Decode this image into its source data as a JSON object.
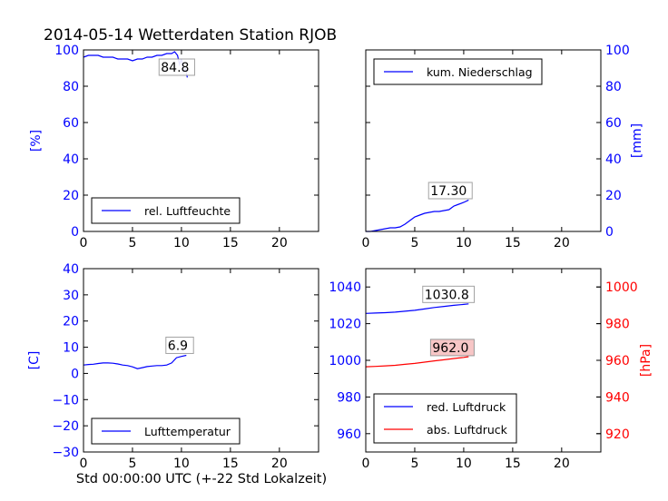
{
  "title": "2014-05-14 Wetterdaten Station RJOB",
  "xlabel": "Std 00:00:00 UTC (+-22 Std Lokalzeit)",
  "chart_data": [
    {
      "type": "line",
      "panel": "top-left",
      "ylabel": "[%]",
      "xlim": [
        0,
        24
      ],
      "ylim": [
        0,
        100
      ],
      "xticks": [
        "0",
        "5",
        "10",
        "15",
        "20"
      ],
      "yticks": [
        "0",
        "20",
        "40",
        "60",
        "80",
        "100"
      ],
      "legend": "bottom-center",
      "annotation": "84.8",
      "series": [
        {
          "name": "rel. Luftfeuchte",
          "color": "#0000ff",
          "x": [
            0,
            0.5,
            1,
            1.5,
            2,
            2.5,
            3,
            3.5,
            4,
            4.5,
            5,
            5.5,
            6,
            6.5,
            7,
            7.5,
            8,
            8.5,
            9,
            9.3,
            9.6,
            9.8,
            10.0,
            10.2,
            10.4,
            10.6
          ],
          "y": [
            96,
            97,
            97,
            97,
            96,
            96,
            96,
            95,
            95,
            95,
            94,
            95,
            95,
            96,
            96,
            97,
            97,
            98,
            98,
            99,
            97,
            92,
            95,
            88,
            90,
            84.8
          ]
        }
      ]
    },
    {
      "type": "line",
      "panel": "top-right",
      "ylabel": "[mm]",
      "xlim": [
        0,
        24
      ],
      "ylim": [
        0,
        100
      ],
      "xticks": [
        "0",
        "5",
        "10",
        "15",
        "20"
      ],
      "yticks": [
        "0",
        "20",
        "40",
        "60",
        "80",
        "100"
      ],
      "legend": "top-left",
      "annotation": "17.30",
      "series": [
        {
          "name": "kum. Niederschlag",
          "color": "#0000ff",
          "x": [
            0,
            0.5,
            1,
            1.5,
            2,
            2.5,
            3,
            3.5,
            4,
            4.5,
            5,
            5.5,
            6,
            6.5,
            7,
            7.5,
            8,
            8.5,
            9,
            9.5,
            10,
            10.5
          ],
          "y": [
            0,
            0,
            0.5,
            1,
            1.5,
            2,
            2,
            2.5,
            4,
            6,
            8,
            9,
            10,
            10.5,
            11,
            11,
            11.5,
            12,
            14,
            15,
            16,
            17.3
          ]
        }
      ]
    },
    {
      "type": "line",
      "panel": "bottom-left",
      "ylabel": "[C]",
      "xlim": [
        0,
        24
      ],
      "ylim": [
        -30,
        40
      ],
      "xticks": [
        "0",
        "5",
        "10",
        "15",
        "20"
      ],
      "yticks": [
        "−30",
        "−20",
        "−10",
        "0",
        "10",
        "20",
        "30",
        "40"
      ],
      "legend": "bottom-center",
      "annotation": "6.9",
      "series": [
        {
          "name": "Lufttemperatur",
          "color": "#0000ff",
          "x": [
            0,
            0.5,
            1,
            1.5,
            2,
            2.5,
            3,
            3.5,
            4,
            4.5,
            5,
            5.5,
            6,
            6.5,
            7,
            7.5,
            8,
            8.5,
            9,
            9.5,
            10,
            10.5
          ],
          "y": [
            3.2,
            3.4,
            3.5,
            3.8,
            4,
            4,
            3.9,
            3.6,
            3.2,
            3,
            2.5,
            1.8,
            2.2,
            2.6,
            2.8,
            3,
            3,
            3.2,
            4,
            6,
            6.5,
            6.9
          ]
        }
      ]
    },
    {
      "type": "line",
      "panel": "bottom-right",
      "ylabel": "",
      "ylabel_right": "[hPa]",
      "xlim": [
        0,
        24
      ],
      "ylim": [
        950,
        1050
      ],
      "ylim_right": [
        910,
        1010
      ],
      "xticks": [
        "0",
        "5",
        "10",
        "15",
        "20"
      ],
      "yticks": [
        "960",
        "980",
        "1000",
        "1020",
        "1040"
      ],
      "yticks_right": [
        "920",
        "940",
        "960",
        "980",
        "1000"
      ],
      "legend": "bottom-left",
      "annotations": [
        "1030.8",
        "962.0"
      ],
      "series": [
        {
          "name": "red. Luftdruck",
          "axis": "left",
          "color": "#0000ff",
          "x": [
            0,
            1,
            2,
            3,
            4,
            5,
            6,
            7,
            8,
            9,
            10,
            10.5
          ],
          "y": [
            1025.6,
            1025.8,
            1026,
            1026.3,
            1026.8,
            1027.3,
            1028,
            1028.8,
            1029.4,
            1030,
            1030.5,
            1030.8
          ]
        },
        {
          "name": "abs. Luftdruck",
          "axis": "right",
          "color": "#ff0000",
          "x": [
            0,
            1,
            2,
            3,
            4,
            5,
            6,
            7,
            8,
            9,
            10,
            10.5
          ],
          "y": [
            956.5,
            956.7,
            957,
            957.3,
            957.8,
            958.3,
            959,
            959.7,
            960.3,
            961,
            961.6,
            962.0
          ]
        }
      ]
    }
  ]
}
